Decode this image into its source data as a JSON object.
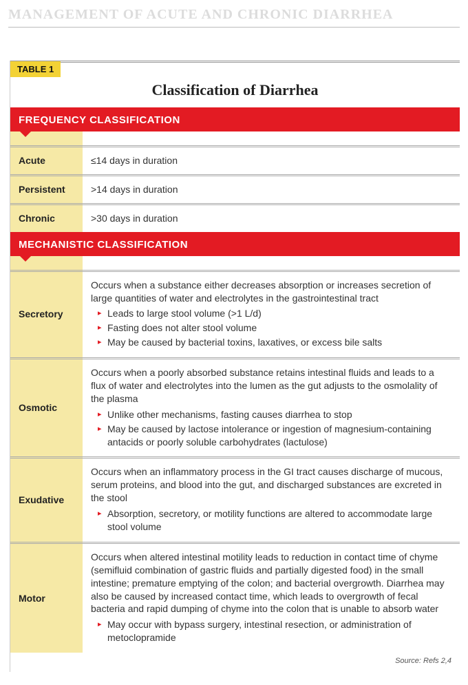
{
  "faded_header": "MANAGEMENT OF ACUTE AND CHRONIC DIARRHEA",
  "table_label": "TABLE 1",
  "table_title": "Classification of Diarrhea",
  "sections": {
    "frequency": {
      "header": "FREQUENCY CLASSIFICATION",
      "rows": [
        {
          "label": "Acute",
          "text": "≤14 days in duration"
        },
        {
          "label": "Persistent",
          "text": ">14 days in duration"
        },
        {
          "label": "Chronic",
          "text": ">30 days in duration"
        }
      ]
    },
    "mechanistic": {
      "header": "MECHANISTIC CLASSIFICATION",
      "rows": [
        {
          "label": "Secretory",
          "text": "Occurs when a substance either decreases absorption or increases secretion of large quantities of water and electrolytes in the gastrointestinal tract",
          "bullets": [
            "Leads to large stool volume (>1 L/d)",
            "Fasting does not alter stool volume",
            "May be caused by bacterial toxins, laxatives, or excess bile salts"
          ]
        },
        {
          "label": "Osmotic",
          "text": "Occurs when a poorly absorbed substance retains intestinal fluids and leads to a flux of water and electrolytes into the lumen as the gut adjusts to the osmolality of the plasma",
          "bullets": [
            "Unlike other mechanisms, fasting causes diarrhea to stop",
            "May be caused by lactose intolerance or ingestion of magnesium-containing antacids or poorly soluble carbohydrates (lactulose)"
          ]
        },
        {
          "label": "Exudative",
          "text": "Occurs when an inflammatory process in the GI tract causes discharge of mucous, serum proteins, and blood into the gut, and discharged substances are excreted in the stool",
          "bullets": [
            "Absorption, secretory, or motility functions are altered to accommodate large stool volume"
          ]
        },
        {
          "label": "Motor",
          "text": "Occurs when altered intestinal motility leads to reduction in contact time of chyme (semifluid combination of gastric fluids and partially digested food) in the small intestine; premature emptying of the colon; and bacterial overgrowth. Diarrhea may also be caused by increased contact time, which leads to overgrowth of fecal bacteria and rapid dumping of chyme into the colon that is unable to absorb water",
          "bullets": [
            "May occur with bypass surgery, intestinal resection, or administration of metoclopramide"
          ]
        }
      ]
    }
  },
  "source": "Source: Refs 2,4",
  "colors": {
    "header_bg": "#e31b23",
    "label_bg": "#f6e9a6",
    "tab_bg": "#f3d235",
    "bullet": "#e31b23"
  }
}
